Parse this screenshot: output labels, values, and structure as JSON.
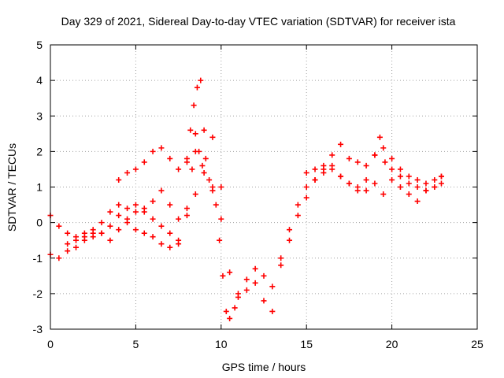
{
  "chart_data": {
    "type": "scatter",
    "title": "Day 329 of 2021, Sidereal Day-to-day VTEC variation (SDTVAR) for receiver ista",
    "xlabel": "GPS time / hours",
    "ylabel": "SDTVAR / TECUs",
    "xlim": [
      0,
      25
    ],
    "ylim": [
      -3,
      5
    ],
    "xticks": [
      0,
      5,
      10,
      15,
      20,
      25
    ],
    "yticks": [
      -3,
      -2,
      -1,
      0,
      1,
      2,
      3,
      4,
      5
    ],
    "grid": true,
    "marker": "+",
    "color": "#ff0000",
    "series": [
      {
        "x": [
          0.0,
          0.5,
          1.0,
          1.5,
          2.0,
          2.5,
          3.0,
          3.5,
          4.0,
          4.5,
          5.0,
          5.5,
          6.0,
          6.5,
          7.0,
          7.5,
          8.0,
          8.3,
          8.5,
          8.7,
          8.9,
          9.1,
          9.3,
          9.5,
          9.7,
          9.9,
          10.1,
          10.3,
          10.5,
          10.8,
          11.0,
          11.5,
          12.0,
          12.5,
          13.0,
          13.5,
          14.0,
          14.5,
          15.0,
          15.5,
          16.0,
          16.5,
          17.0,
          17.5,
          18.0,
          18.5,
          19.0,
          19.5,
          20.0,
          20.5,
          21.0,
          21.5,
          22.0,
          22.5,
          22.9
        ],
        "y": [
          0.2,
          -0.1,
          -0.3,
          -0.5,
          -0.4,
          -0.3,
          0.0,
          0.3,
          0.5,
          0.4,
          0.5,
          0.3,
          0.1,
          -0.1,
          -0.3,
          -0.6,
          0.4,
          1.5,
          2.5,
          2.0,
          1.6,
          1.8,
          1.2,
          1.0,
          0.5,
          -0.5,
          -1.5,
          -2.5,
          -2.7,
          -2.4,
          -2.1,
          -1.6,
          -1.3,
          -1.5,
          -1.8,
          -1.2,
          -0.5,
          0.2,
          0.7,
          1.2,
          1.6,
          1.9,
          2.2,
          1.8,
          1.7,
          1.6,
          1.9,
          2.1,
          1.8,
          1.5,
          1.3,
          1.2,
          1.1,
          1.2,
          1.3
        ]
      },
      {
        "x": [
          0.0,
          0.5,
          1.0,
          1.5,
          2.0,
          2.5,
          3.0,
          3.5,
          4.0,
          4.5,
          5.0,
          5.5,
          6.0,
          6.5,
          7.0,
          7.5,
          8.0,
          8.5,
          9.0,
          9.5,
          10.0,
          10.5,
          11.0,
          11.5,
          12.0,
          12.5,
          13.0,
          13.5,
          14.0,
          14.5,
          15.0,
          15.5,
          16.0,
          16.5,
          17.0,
          17.5,
          18.0,
          18.5,
          19.0,
          19.5,
          20.0,
          20.5,
          21.0,
          21.5,
          22.0,
          22.5,
          22.9
        ],
        "y": [
          -0.9,
          -1.0,
          -0.8,
          -0.7,
          -0.5,
          -0.4,
          -0.3,
          -0.1,
          0.2,
          0.0,
          -0.2,
          -0.3,
          -0.4,
          -0.6,
          -0.7,
          -0.5,
          0.2,
          0.8,
          1.4,
          0.9,
          0.1,
          -1.4,
          -2.0,
          -1.9,
          -1.7,
          -2.2,
          -2.5,
          -1.0,
          -0.2,
          0.5,
          1.0,
          1.2,
          1.5,
          1.6,
          1.3,
          1.1,
          0.9,
          0.9,
          1.1,
          0.8,
          1.2,
          1.0,
          0.8,
          0.6,
          0.9,
          1.0,
          1.1
        ]
      },
      {
        "x": [
          4.0,
          4.5,
          5.0,
          5.5,
          6.0,
          6.5,
          7.0,
          7.5,
          8.0,
          8.5,
          9.0,
          9.5,
          10.0
        ],
        "y": [
          1.2,
          1.4,
          1.5,
          1.7,
          2.0,
          2.1,
          1.8,
          1.5,
          1.7,
          2.0,
          2.6,
          2.4,
          1.0
        ]
      },
      {
        "x": [
          1.0,
          1.5,
          2.0,
          2.5,
          3.0,
          3.5,
          4.0,
          4.5,
          5.0,
          5.5,
          6.0,
          6.5,
          7.0,
          7.5
        ],
        "y": [
          -0.6,
          -0.4,
          -0.3,
          -0.2,
          -0.3,
          -0.5,
          -0.2,
          0.1,
          0.3,
          0.4,
          0.6,
          0.9,
          0.5,
          0.1
        ]
      },
      {
        "x": [
          8.0,
          8.2,
          8.4,
          8.6,
          8.8
        ],
        "y": [
          1.8,
          2.6,
          3.3,
          3.8,
          4.0
        ]
      },
      {
        "x": [
          15.0,
          15.5,
          16.0,
          16.5,
          17.0,
          17.5,
          18.0,
          18.5,
          19.0,
          19.3,
          19.6,
          20.0,
          20.5,
          21.0,
          21.5,
          22.0,
          22.5,
          22.9
        ],
        "y": [
          1.4,
          1.5,
          1.4,
          1.5,
          1.3,
          1.1,
          1.0,
          1.2,
          1.9,
          2.4,
          1.7,
          1.5,
          1.3,
          1.1,
          1.0,
          0.9,
          1.0,
          1.3
        ]
      }
    ]
  }
}
